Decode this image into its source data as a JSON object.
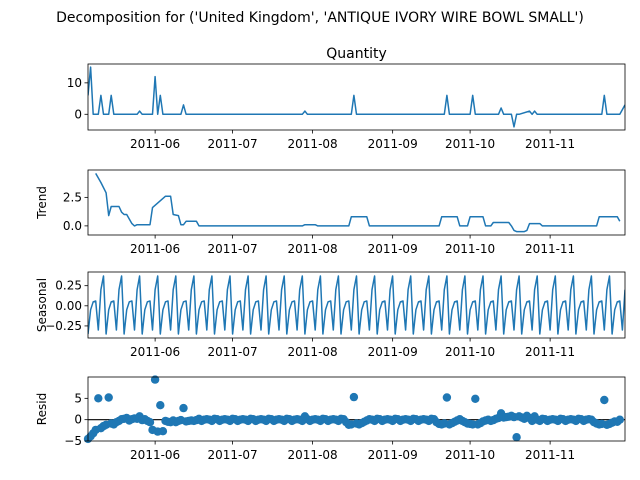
{
  "figure": {
    "suptitle": "Decomposition for ('United Kingdom', 'ANTIQUE IVORY WIRE BOWL SMALL')"
  },
  "colors": {
    "series": "#1f77b4",
    "axis": "#000000",
    "zero_line": "#000000"
  },
  "chart_data": [
    {
      "type": "line",
      "title": "Quantity",
      "ylabel": "",
      "ylim": [
        -5,
        16
      ],
      "yticks": [
        0,
        10
      ],
      "ytick_labels": [
        "0",
        "10"
      ],
      "xlim": [
        "2011-05-06",
        "2011-11-30"
      ],
      "xticks": [
        "2011-06-01",
        "2011-07-01",
        "2011-08-01",
        "2011-09-01",
        "2011-10-01",
        "2011-11-01"
      ],
      "xtick_labels": [
        "2011-06",
        "2011-07",
        "2011-08",
        "2011-09",
        "2011-10",
        "2011-11"
      ],
      "x": [
        "2011-05-06",
        "2011-05-07",
        "2011-05-08",
        "2011-05-10",
        "2011-05-11",
        "2011-05-12",
        "2011-05-13",
        "2011-05-14",
        "2011-05-15",
        "2011-05-16",
        "2011-05-17",
        "2011-05-18",
        "2011-05-19",
        "2011-05-20",
        "2011-05-25",
        "2011-05-26",
        "2011-05-27",
        "2011-05-31",
        "2011-06-01",
        "2011-06-02",
        "2011-06-03",
        "2011-06-04",
        "2011-06-11",
        "2011-06-12",
        "2011-06-13",
        "2011-07-28",
        "2011-07-29",
        "2011-07-30",
        "2011-08-16",
        "2011-08-17",
        "2011-08-18",
        "2011-09-21",
        "2011-09-22",
        "2011-09-23",
        "2011-10-01",
        "2011-10-02",
        "2011-10-03",
        "2011-10-12",
        "2011-10-13",
        "2011-10-14",
        "2011-10-17",
        "2011-10-18",
        "2011-10-19",
        "2011-10-20",
        "2011-10-24",
        "2011-10-25",
        "2011-10-26",
        "2011-10-27",
        "2011-10-28",
        "2011-11-21",
        "2011-11-22",
        "2011-11-23",
        "2011-11-28",
        "2011-11-30"
      ],
      "series": [
        {
          "values": [
            6,
            15,
            0,
            0,
            6,
            0,
            0,
            0,
            6,
            0,
            0,
            0,
            0,
            0,
            0,
            1,
            0,
            0,
            12,
            0,
            6,
            0,
            0,
            3,
            0,
            0,
            1,
            0,
            0,
            6,
            0,
            0,
            6,
            0,
            0,
            6,
            0,
            0,
            2,
            0,
            0,
            -4,
            0,
            0,
            1,
            0,
            1,
            0,
            0,
            0,
            6,
            0,
            0,
            3
          ]
        }
      ]
    },
    {
      "type": "line",
      "title": "",
      "ylabel": "Trend",
      "ylim": [
        -0.8,
        4.9
      ],
      "yticks": [
        0,
        2.5
      ],
      "ytick_labels": [
        "0.0",
        "2.5"
      ],
      "xlim": [
        "2011-05-06",
        "2011-11-30"
      ],
      "xticks": [
        "2011-06-01",
        "2011-07-01",
        "2011-08-01",
        "2011-09-01",
        "2011-10-01",
        "2011-11-01"
      ],
      "xtick_labels": [
        "2011-06",
        "2011-07",
        "2011-08",
        "2011-09",
        "2011-10",
        "2011-11"
      ],
      "x": [
        "2011-05-09",
        "2011-05-11",
        "2011-05-13",
        "2011-05-14",
        "2011-05-15",
        "2011-05-16",
        "2011-05-18",
        "2011-05-19",
        "2011-05-20",
        "2011-05-21",
        "2011-05-23",
        "2011-05-24",
        "2011-05-25",
        "2011-05-27",
        "2011-05-28",
        "2011-05-29",
        "2011-05-30",
        "2011-05-31",
        "2011-06-05",
        "2011-06-06",
        "2011-06-07",
        "2011-06-08",
        "2011-06-10",
        "2011-06-11",
        "2011-06-12",
        "2011-06-13",
        "2011-06-17",
        "2011-06-18",
        "2011-07-28",
        "2011-07-29",
        "2011-08-02",
        "2011-08-03",
        "2011-08-15",
        "2011-08-16",
        "2011-08-22",
        "2011-08-23",
        "2011-09-19",
        "2011-09-20",
        "2011-09-26",
        "2011-09-27",
        "2011-09-30",
        "2011-10-01",
        "2011-10-06",
        "2011-10-07",
        "2011-10-09",
        "2011-10-10",
        "2011-10-16",
        "2011-10-17",
        "2011-10-18",
        "2011-10-19",
        "2011-10-22",
        "2011-10-23",
        "2011-10-24",
        "2011-10-28",
        "2011-10-29",
        "2011-10-30",
        "2011-11-19",
        "2011-11-20",
        "2011-11-27",
        "2011-11-28"
      ],
      "series": [
        {
          "values": [
            4.6,
            3.8,
            2.9,
            0.9,
            1.7,
            1.7,
            1.7,
            1.2,
            1.0,
            1.0,
            0.2,
            0.0,
            0.1,
            0.1,
            0.1,
            0.1,
            0.1,
            1.6,
            2.6,
            2.6,
            2.6,
            1.0,
            0.9,
            0.1,
            0.1,
            0.4,
            0.4,
            0.0,
            0.0,
            0.1,
            0.1,
            0.0,
            0.0,
            0.8,
            0.8,
            0.0,
            0.0,
            0.8,
            0.8,
            0.0,
            0.0,
            0.8,
            0.8,
            0.0,
            0.0,
            0.3,
            0.3,
            0.0,
            -0.4,
            -0.5,
            -0.5,
            -0.4,
            0.2,
            0.2,
            0.0,
            0.0,
            0.0,
            0.8,
            0.8,
            0.4
          ]
        }
      ]
    },
    {
      "type": "line",
      "title": "",
      "ylabel": "Seasonal",
      "ylim": [
        -0.4,
        0.42
      ],
      "yticks": [
        0.25,
        0,
        -0.25
      ],
      "ytick_labels": [
        "0.25",
        "0.00",
        "−0.25"
      ],
      "xlim": [
        "2011-05-06",
        "2011-11-30"
      ],
      "xticks": [
        "2011-06-01",
        "2011-07-01",
        "2011-08-01",
        "2011-09-01",
        "2011-10-01",
        "2011-11-01"
      ],
      "xtick_labels": [
        "2011-06",
        "2011-07",
        "2011-08",
        "2011-09",
        "2011-10",
        "2011-11"
      ],
      "period_start": "2011-05-06",
      "period_days": 7,
      "weekly_pattern": [
        -0.35,
        -0.05,
        0.05,
        0.06,
        -0.3,
        0.2,
        0.37
      ]
    },
    {
      "type": "scatter",
      "title": "",
      "ylabel": "Resid",
      "ylim": [
        -5,
        10
      ],
      "yticks": [
        -5,
        0,
        5
      ],
      "ytick_labels": [
        "−5",
        "0",
        "5"
      ],
      "xlim": [
        "2011-05-06",
        "2011-11-30"
      ],
      "xticks": [
        "2011-06-01",
        "2011-07-01",
        "2011-08-01",
        "2011-09-01",
        "2011-10-01",
        "2011-11-01"
      ],
      "xtick_labels": [
        "2011-06",
        "2011-07",
        "2011-08",
        "2011-09",
        "2011-10",
        "2011-11"
      ],
      "zero_line": 0,
      "points": [
        [
          "2011-05-06",
          -4.5
        ],
        [
          "2011-05-07",
          -3.9
        ],
        [
          "2011-05-08",
          -3.2
        ],
        [
          "2011-05-09",
          -2.4
        ],
        [
          "2011-05-10",
          5.0
        ],
        [
          "2011-05-11",
          -2.0
        ],
        [
          "2011-05-12",
          -1.5
        ],
        [
          "2011-05-13",
          -1.2
        ],
        [
          "2011-05-14",
          5.2
        ],
        [
          "2011-05-15",
          -0.9
        ],
        [
          "2011-05-16",
          -1.1
        ],
        [
          "2011-05-17",
          -0.6
        ],
        [
          "2011-05-18",
          -0.3
        ],
        [
          "2011-05-19",
          0.1
        ],
        [
          "2011-05-20",
          0.2
        ],
        [
          "2011-05-21",
          0.4
        ],
        [
          "2011-05-22",
          -0.2
        ],
        [
          "2011-05-23",
          0.1
        ],
        [
          "2011-05-24",
          0.3
        ],
        [
          "2011-05-25",
          0.2
        ],
        [
          "2011-05-26",
          0.8
        ],
        [
          "2011-05-27",
          -0.1
        ],
        [
          "2011-05-28",
          0.1
        ],
        [
          "2011-05-29",
          -0.3
        ],
        [
          "2011-05-30",
          -0.6
        ],
        [
          "2011-05-31",
          -2.4
        ],
        [
          "2011-06-01",
          9.4
        ],
        [
          "2011-06-02",
          -2.8
        ],
        [
          "2011-06-03",
          3.4
        ],
        [
          "2011-06-04",
          -2.7
        ],
        [
          "2011-06-05",
          -0.3
        ],
        [
          "2011-06-06",
          -0.5
        ],
        [
          "2011-06-07",
          -0.6
        ],
        [
          "2011-06-08",
          -0.2
        ],
        [
          "2011-06-09",
          -0.6
        ],
        [
          "2011-06-10",
          -0.3
        ],
        [
          "2011-06-11",
          -0.1
        ],
        [
          "2011-06-12",
          2.7
        ],
        [
          "2011-06-13",
          -0.4
        ],
        [
          "2011-06-14",
          -0.3
        ],
        [
          "2011-06-15",
          -0.2
        ],
        [
          "2011-06-16",
          -0.3
        ],
        [
          "2011-06-17",
          -0.1
        ],
        [
          "2011-06-18",
          0.2
        ],
        [
          "2011-06-19",
          -0.3
        ],
        [
          "2011-06-20",
          0.0
        ],
        [
          "2011-06-21",
          0.1
        ],
        [
          "2011-06-22",
          0.0
        ],
        [
          "2011-06-23",
          -0.3
        ],
        [
          "2011-06-24",
          0.2
        ],
        [
          "2011-06-25",
          0.1
        ],
        [
          "2011-06-26",
          -0.3
        ],
        [
          "2011-06-27",
          0.0
        ],
        [
          "2011-06-28",
          0.1
        ],
        [
          "2011-06-29",
          0.0
        ],
        [
          "2011-06-30",
          -0.3
        ],
        [
          "2011-07-01",
          0.2
        ],
        [
          "2011-07-02",
          0.1
        ],
        [
          "2011-07-03",
          -0.3
        ],
        [
          "2011-07-04",
          0.0
        ],
        [
          "2011-07-05",
          0.1
        ],
        [
          "2011-07-06",
          0.0
        ],
        [
          "2011-07-07",
          -0.3
        ],
        [
          "2011-07-08",
          0.2
        ],
        [
          "2011-07-09",
          0.1
        ],
        [
          "2011-07-10",
          -0.3
        ],
        [
          "2011-07-11",
          0.0
        ],
        [
          "2011-07-12",
          0.1
        ],
        [
          "2011-07-13",
          0.0
        ],
        [
          "2011-07-14",
          -0.3
        ],
        [
          "2011-07-15",
          0.2
        ],
        [
          "2011-07-16",
          0.1
        ],
        [
          "2011-07-17",
          -0.3
        ],
        [
          "2011-07-18",
          0.0
        ],
        [
          "2011-07-19",
          0.1
        ],
        [
          "2011-07-20",
          0.0
        ],
        [
          "2011-07-21",
          -0.3
        ],
        [
          "2011-07-22",
          0.2
        ],
        [
          "2011-07-23",
          0.1
        ],
        [
          "2011-07-24",
          -0.3
        ],
        [
          "2011-07-25",
          0.0
        ],
        [
          "2011-07-26",
          0.1
        ],
        [
          "2011-07-27",
          0.0
        ],
        [
          "2011-07-28",
          -0.3
        ],
        [
          "2011-07-29",
          0.8
        ],
        [
          "2011-07-30",
          0.1
        ],
        [
          "2011-07-31",
          -0.3
        ],
        [
          "2011-08-01",
          0.0
        ],
        [
          "2011-08-02",
          0.1
        ],
        [
          "2011-08-03",
          0.0
        ],
        [
          "2011-08-04",
          -0.3
        ],
        [
          "2011-08-05",
          0.2
        ],
        [
          "2011-08-06",
          0.1
        ],
        [
          "2011-08-07",
          -0.3
        ],
        [
          "2011-08-08",
          0.0
        ],
        [
          "2011-08-09",
          0.1
        ],
        [
          "2011-08-10",
          0.0
        ],
        [
          "2011-08-11",
          -0.3
        ],
        [
          "2011-08-12",
          0.2
        ],
        [
          "2011-08-13",
          0.1
        ],
        [
          "2011-08-14",
          -0.6
        ],
        [
          "2011-08-15",
          -1.2
        ],
        [
          "2011-08-16",
          -1.1
        ],
        [
          "2011-08-17",
          5.3
        ],
        [
          "2011-08-18",
          -0.9
        ],
        [
          "2011-08-19",
          -1.1
        ],
        [
          "2011-08-20",
          -0.8
        ],
        [
          "2011-08-21",
          -0.5
        ],
        [
          "2011-08-22",
          -0.2
        ],
        [
          "2011-08-23",
          0.1
        ],
        [
          "2011-08-24",
          0.0
        ],
        [
          "2011-08-25",
          -0.3
        ],
        [
          "2011-08-26",
          0.2
        ],
        [
          "2011-08-27",
          0.1
        ],
        [
          "2011-08-28",
          -0.3
        ],
        [
          "2011-08-29",
          0.0
        ],
        [
          "2011-08-30",
          0.1
        ],
        [
          "2011-08-31",
          0.0
        ],
        [
          "2011-09-01",
          -0.3
        ],
        [
          "2011-09-02",
          0.2
        ],
        [
          "2011-09-03",
          0.1
        ],
        [
          "2011-09-04",
          -0.3
        ],
        [
          "2011-09-05",
          0.0
        ],
        [
          "2011-09-06",
          0.1
        ],
        [
          "2011-09-07",
          0.0
        ],
        [
          "2011-09-08",
          -0.3
        ],
        [
          "2011-09-09",
          0.2
        ],
        [
          "2011-09-10",
          0.1
        ],
        [
          "2011-09-11",
          -0.3
        ],
        [
          "2011-09-12",
          0.0
        ],
        [
          "2011-09-13",
          0.1
        ],
        [
          "2011-09-14",
          0.0
        ],
        [
          "2011-09-15",
          -0.3
        ],
        [
          "2011-09-16",
          0.2
        ],
        [
          "2011-09-17",
          0.1
        ],
        [
          "2011-09-18",
          -0.6
        ],
        [
          "2011-09-19",
          -1.0
        ],
        [
          "2011-09-20",
          -1.1
        ],
        [
          "2011-09-21",
          -0.9
        ],
        [
          "2011-09-22",
          5.2
        ],
        [
          "2011-09-23",
          -1.1
        ],
        [
          "2011-09-24",
          -0.8
        ],
        [
          "2011-09-25",
          -0.5
        ],
        [
          "2011-09-26",
          -0.2
        ],
        [
          "2011-09-27",
          0.1
        ],
        [
          "2011-09-28",
          -0.3
        ],
        [
          "2011-09-29",
          -0.6
        ],
        [
          "2011-09-30",
          -0.9
        ],
        [
          "2011-10-01",
          -1.0
        ],
        [
          "2011-10-02",
          -1.1
        ],
        [
          "2011-10-03",
          4.9
        ],
        [
          "2011-10-04",
          -1.1
        ],
        [
          "2011-10-05",
          -0.8
        ],
        [
          "2011-10-06",
          -0.4
        ],
        [
          "2011-10-07",
          -0.2
        ],
        [
          "2011-10-08",
          0.0
        ],
        [
          "2011-10-09",
          -0.3
        ],
        [
          "2011-10-10",
          -0.1
        ],
        [
          "2011-10-11",
          0.2
        ],
        [
          "2011-10-12",
          0.4
        ],
        [
          "2011-10-13",
          1.5
        ],
        [
          "2011-10-14",
          0.5
        ],
        [
          "2011-10-15",
          0.6
        ],
        [
          "2011-10-16",
          0.7
        ],
        [
          "2011-10-17",
          0.9
        ],
        [
          "2011-10-18",
          0.6
        ],
        [
          "2011-10-19",
          -4.1
        ],
        [
          "2011-10-20",
          0.8
        ],
        [
          "2011-10-21",
          0.5
        ],
        [
          "2011-10-22",
          0.2
        ],
        [
          "2011-10-23",
          0.9
        ],
        [
          "2011-10-24",
          0.4
        ],
        [
          "2011-10-25",
          -0.3
        ],
        [
          "2011-10-26",
          0.8
        ],
        [
          "2011-10-27",
          0.0
        ],
        [
          "2011-10-28",
          -0.3
        ],
        [
          "2011-10-29",
          0.2
        ],
        [
          "2011-10-30",
          0.1
        ],
        [
          "2011-10-31",
          -0.3
        ],
        [
          "2011-11-01",
          0.0
        ],
        [
          "2011-11-02",
          0.1
        ],
        [
          "2011-11-03",
          0.0
        ],
        [
          "2011-11-04",
          -0.3
        ],
        [
          "2011-11-05",
          0.2
        ],
        [
          "2011-11-06",
          0.1
        ],
        [
          "2011-11-07",
          -0.3
        ],
        [
          "2011-11-08",
          0.0
        ],
        [
          "2011-11-09",
          0.1
        ],
        [
          "2011-11-10",
          0.0
        ],
        [
          "2011-11-11",
          -0.3
        ],
        [
          "2011-11-12",
          0.2
        ],
        [
          "2011-11-13",
          0.1
        ],
        [
          "2011-11-14",
          -0.3
        ],
        [
          "2011-11-15",
          0.0
        ],
        [
          "2011-11-16",
          0.1
        ],
        [
          "2011-11-17",
          0.0
        ],
        [
          "2011-11-18",
          -0.6
        ],
        [
          "2011-11-19",
          -0.9
        ],
        [
          "2011-11-20",
          -1.1
        ],
        [
          "2011-11-21",
          -1.0
        ],
        [
          "2011-11-22",
          4.6
        ],
        [
          "2011-11-23",
          -1.2
        ],
        [
          "2011-11-24",
          -1.0
        ],
        [
          "2011-11-25",
          -0.7
        ],
        [
          "2011-11-26",
          -0.4
        ],
        [
          "2011-11-27",
          -0.5
        ],
        [
          "2011-11-28",
          0.0
        ]
      ]
    }
  ]
}
